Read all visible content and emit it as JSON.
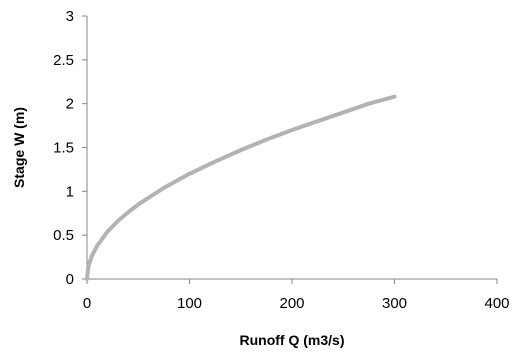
{
  "chart_data": {
    "type": "line",
    "title": "",
    "xlabel": "Runoff Q (m3/s)",
    "ylabel": "Stage W (m)",
    "xlim": [
      0,
      400
    ],
    "ylim": [
      0,
      3
    ],
    "xticks": [
      0,
      100,
      200,
      300,
      400
    ],
    "yticks": [
      0,
      0.5,
      1,
      1.5,
      2,
      2.5,
      3
    ],
    "xtick_labels": [
      "0",
      "100",
      "200",
      "300",
      "400"
    ],
    "ytick_labels": [
      "0",
      "0.5",
      "1",
      "1.5",
      "2",
      "2.5",
      "3"
    ],
    "grid": false,
    "legend": "none",
    "series": [
      {
        "color": "#b3b3b3",
        "x": [
          0,
          1,
          2,
          5,
          10,
          20,
          30,
          40,
          50,
          75,
          100,
          125,
          150,
          175,
          200,
          225,
          250,
          275,
          300
        ],
        "y": [
          0,
          0.12,
          0.17,
          0.27,
          0.38,
          0.54,
          0.66,
          0.76,
          0.85,
          1.04,
          1.2,
          1.34,
          1.47,
          1.59,
          1.7,
          1.8,
          1.9,
          2.0,
          2.08
        ]
      }
    ]
  }
}
